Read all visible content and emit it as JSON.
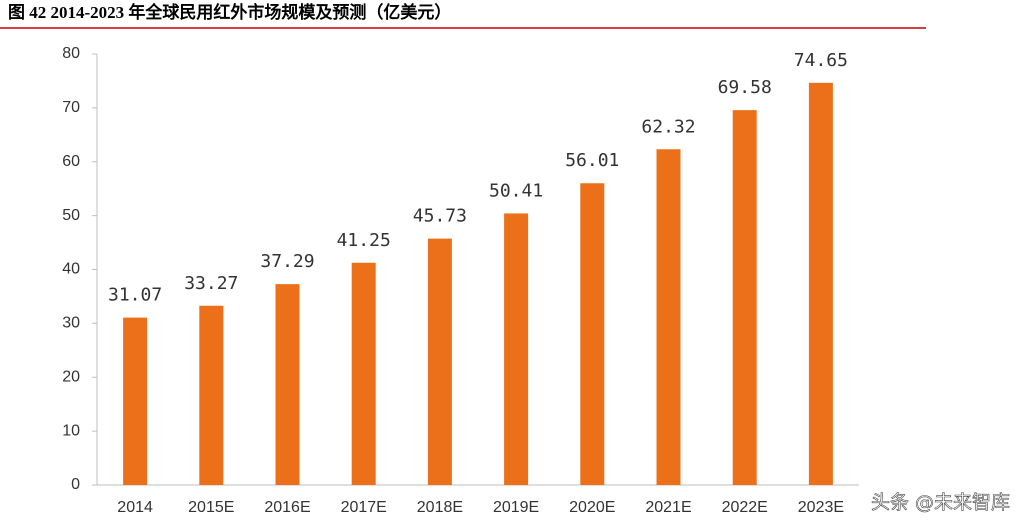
{
  "chart_data": {
    "type": "bar",
    "title": "图 42 2014-2023 年全球民用红外市场规模及预测（亿美元）",
    "categories": [
      "2014",
      "2015E",
      "2016E",
      "2017E",
      "2018E",
      "2019E",
      "2020E",
      "2021E",
      "2022E",
      "2023E"
    ],
    "values": [
      31.07,
      33.27,
      37.29,
      41.25,
      45.73,
      50.41,
      56.01,
      62.32,
      69.58,
      74.65
    ],
    "color": "#ec7019",
    "ylim": [
      0,
      80
    ],
    "yticks": [
      0,
      10,
      20,
      30,
      40,
      50,
      60,
      70,
      80
    ],
    "grid": false,
    "watermark": "头条 @未来智库"
  }
}
